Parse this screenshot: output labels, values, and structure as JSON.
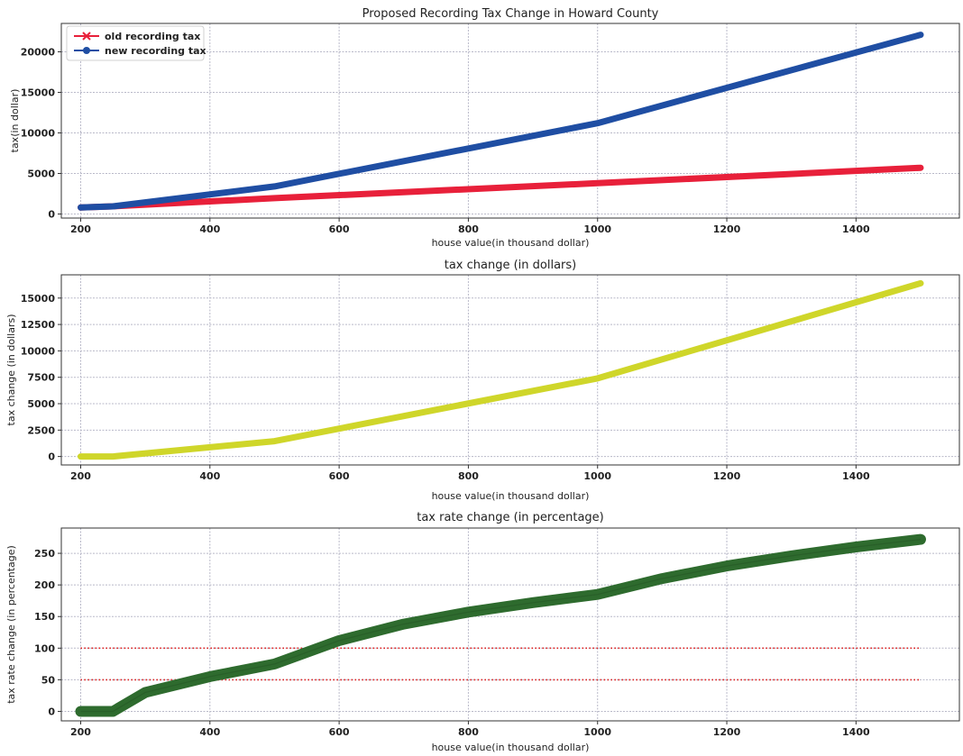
{
  "chart_data": [
    {
      "type": "line",
      "title": "Proposed Recording Tax Change in Howard County",
      "xlabel": "house value(in thousand dollar)",
      "ylabel": "tax(in dollar)",
      "xlim": [
        170,
        1560
      ],
      "ylim": [
        -500,
        23500
      ],
      "xticks": [
        200,
        400,
        600,
        800,
        1000,
        1200,
        1400
      ],
      "yticks": [
        0,
        5000,
        10000,
        15000,
        20000
      ],
      "grid": true,
      "legend": "top-left",
      "series": [
        {
          "name": "old recording tax",
          "color": "#e8203a",
          "marker": "x",
          "x": [
            200,
            250,
            500,
            1000,
            1500
          ],
          "y": [
            800,
            940,
            1950,
            3800,
            5700
          ]
        },
        {
          "name": "new recording tax",
          "color": "#1f4ea3",
          "marker": "circle",
          "x": [
            200,
            250,
            500,
            1000,
            1500
          ],
          "y": [
            800,
            940,
            3400,
            11200,
            22100
          ]
        }
      ]
    },
    {
      "type": "line",
      "title": "tax change (in dollars)",
      "xlabel": "house value(in thousand dollar)",
      "ylabel": "tax change (in dollars)",
      "xlim": [
        170,
        1560
      ],
      "ylim": [
        -800,
        17200
      ],
      "xticks": [
        200,
        400,
        600,
        800,
        1000,
        1200,
        1400
      ],
      "yticks": [
        0,
        2500,
        5000,
        7500,
        10000,
        12500,
        15000
      ],
      "grid": true,
      "series": [
        {
          "color": "#cfd62a",
          "x": [
            200,
            250,
            500,
            1000,
            1500
          ],
          "y": [
            0,
            0,
            1450,
            7400,
            16400
          ]
        }
      ]
    },
    {
      "type": "line",
      "title": "tax rate change (in percentage)",
      "xlabel": "house value(in thousand dollar)",
      "ylabel": "tax rate change (in percentage)",
      "xlim": [
        170,
        1560
      ],
      "ylim": [
        -15,
        290
      ],
      "xticks": [
        200,
        400,
        600,
        800,
        1000,
        1200,
        1400
      ],
      "yticks": [
        0,
        50,
        100,
        150,
        200,
        250
      ],
      "grid": true,
      "series": [
        {
          "color": "#2e6b2e",
          "x": [
            200,
            250,
            300,
            400,
            500,
            600,
            700,
            800,
            900,
            1000,
            1100,
            1200,
            1300,
            1400,
            1500
          ],
          "y": [
            0,
            0,
            30,
            55,
            75,
            112,
            138,
            157,
            172,
            185,
            210,
            230,
            246,
            260,
            272
          ]
        }
      ],
      "reference_lines": [
        {
          "y": 100,
          "color": "#e02020",
          "style": "dotted",
          "x_range": [
            200,
            1500
          ]
        },
        {
          "y": 50,
          "color": "#e02020",
          "style": "dotted",
          "x_range": [
            200,
            1500
          ]
        }
      ]
    }
  ]
}
